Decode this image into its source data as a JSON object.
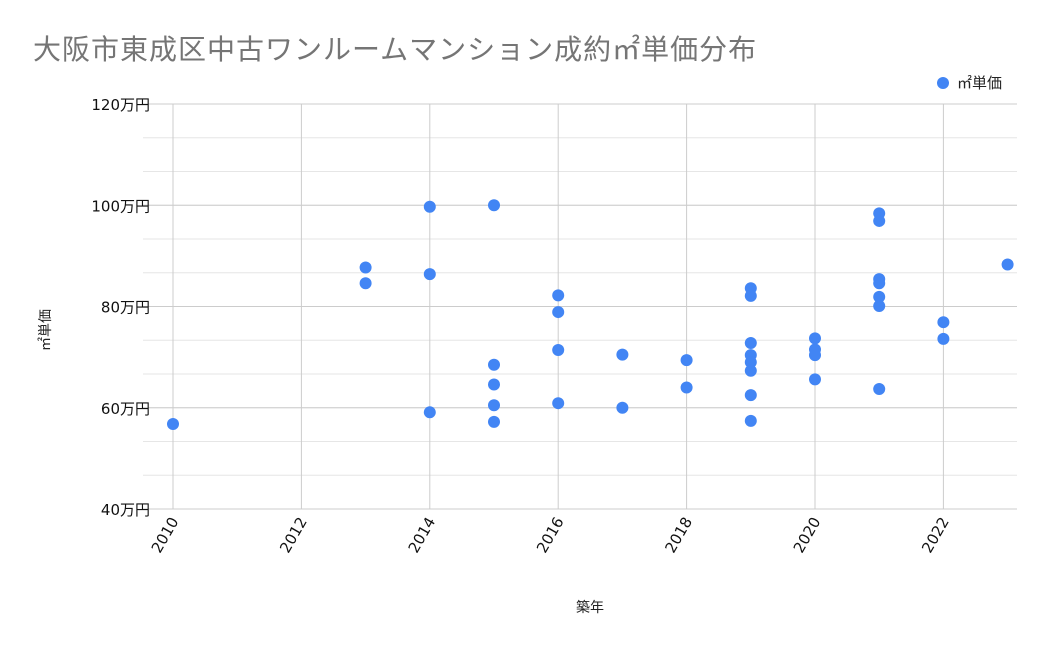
{
  "chart": {
    "title": "大阪市東成区中古ワンルームマンション成約㎡単価分布",
    "legend_label": "㎡単価",
    "series_color": "#4285F4",
    "xlabel": "築年",
    "ylabel": "㎡単価"
  },
  "chart_data": {
    "type": "scatter",
    "title": "大阪市東成区中古ワンルームマンション成約㎡単価分布",
    "xlabel": "築年",
    "ylabel": "㎡単価",
    "xlim": [
      2010,
      2023.15
    ],
    "ylim": [
      40,
      120
    ],
    "x_ticks": [
      "2010",
      "2012",
      "2014",
      "2016",
      "2018",
      "2020",
      "2022"
    ],
    "y_ticks": [
      "40万円",
      "60万円",
      "80万円",
      "100万円",
      "120万円"
    ],
    "y_unit": "万円",
    "grid": true,
    "legend_position": "top-right",
    "series": [
      {
        "name": "㎡単価",
        "color": "#4285F4",
        "points": [
          {
            "x": 2010,
            "y": 56.8
          },
          {
            "x": 2013,
            "y": 87.7
          },
          {
            "x": 2013,
            "y": 84.6
          },
          {
            "x": 2014,
            "y": 99.7
          },
          {
            "x": 2014,
            "y": 86.4
          },
          {
            "x": 2014,
            "y": 59.1
          },
          {
            "x": 2015,
            "y": 100.0
          },
          {
            "x": 2015,
            "y": 68.5
          },
          {
            "x": 2015,
            "y": 64.6
          },
          {
            "x": 2015,
            "y": 60.5
          },
          {
            "x": 2015,
            "y": 57.2
          },
          {
            "x": 2016,
            "y": 82.2
          },
          {
            "x": 2016,
            "y": 78.9
          },
          {
            "x": 2016,
            "y": 71.4
          },
          {
            "x": 2016,
            "y": 60.9
          },
          {
            "x": 2017,
            "y": 70.5
          },
          {
            "x": 2017,
            "y": 60.0
          },
          {
            "x": 2018,
            "y": 69.4
          },
          {
            "x": 2018,
            "y": 64.0
          },
          {
            "x": 2019,
            "y": 83.6
          },
          {
            "x": 2019,
            "y": 82.1
          },
          {
            "x": 2019,
            "y": 72.8
          },
          {
            "x": 2019,
            "y": 70.4
          },
          {
            "x": 2019,
            "y": 69.0
          },
          {
            "x": 2019,
            "y": 67.3
          },
          {
            "x": 2019,
            "y": 62.5
          },
          {
            "x": 2019,
            "y": 57.4
          },
          {
            "x": 2020,
            "y": 73.7
          },
          {
            "x": 2020,
            "y": 71.5
          },
          {
            "x": 2020,
            "y": 70.4
          },
          {
            "x": 2020,
            "y": 65.6
          },
          {
            "x": 2021,
            "y": 98.4
          },
          {
            "x": 2021,
            "y": 96.9
          },
          {
            "x": 2021,
            "y": 85.4
          },
          {
            "x": 2021,
            "y": 84.6
          },
          {
            "x": 2021,
            "y": 81.9
          },
          {
            "x": 2021,
            "y": 80.1
          },
          {
            "x": 2021,
            "y": 63.7
          },
          {
            "x": 2022,
            "y": 76.9
          },
          {
            "x": 2022,
            "y": 73.6
          },
          {
            "x": 2023,
            "y": 88.3
          }
        ]
      }
    ]
  }
}
